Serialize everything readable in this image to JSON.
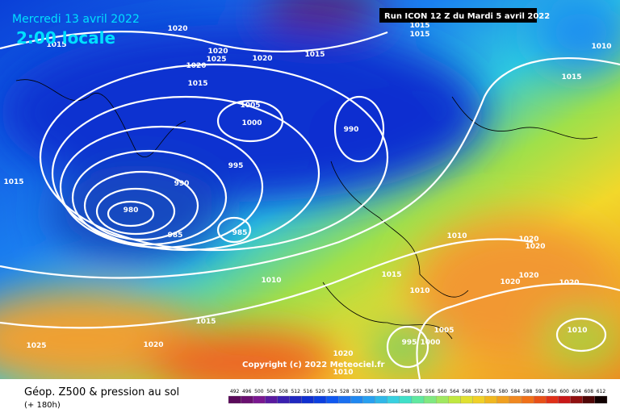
{
  "header": {
    "date": "Mercredi 13 avril 2022",
    "time": "2:00 locale",
    "run": "Run ICON 12 Z du Mardi 5 avril 2022"
  },
  "isobar_labels": [
    1020,
    1015,
    1020,
    1025,
    1020,
    1020,
    1015,
    1015,
    1015,
    1010,
    1015,
    1015,
    1005,
    1000,
    990,
    995,
    990,
    1015,
    980,
    985,
    985,
    1010,
    1020,
    1020,
    1015,
    1010,
    1010,
    1020,
    1020,
    1020,
    1015,
    1005,
    1010,
    1025,
    1020,
    995,
    1000,
    1020,
    1010
  ],
  "copyright": "Copyright (c) 2022 Meteociel.fr",
  "footer": {
    "title": "Géop. Z500 & pression au sol",
    "lead": "(+ 180h)"
  },
  "scale": [
    492,
    496,
    500,
    504,
    508,
    512,
    516,
    520,
    524,
    528,
    532,
    536,
    540,
    544,
    548,
    552,
    556,
    560,
    564,
    568,
    572,
    576,
    580,
    584,
    588,
    592,
    596,
    600,
    604,
    608,
    612
  ]
}
